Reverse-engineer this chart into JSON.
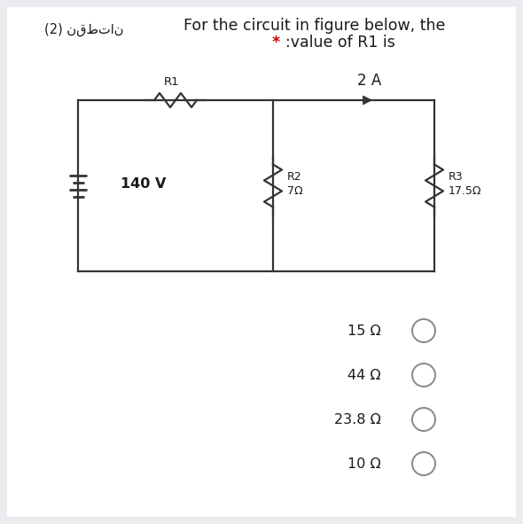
{
  "bg_color": "#ebebf0",
  "inner_bg_color": "#ffffff",
  "title_line1": "For the circuit in figure below, the",
  "title_line2_text": ":value of R1 is",
  "arabic_label": "(2) نقطتان",
  "current_label": "2 A",
  "voltage_label": "140 V",
  "R1_label": "R1",
  "R2_top": "R2",
  "R2_bot": "7Ω",
  "R3_top": "R3",
  "R3_bot": "17.5Ω",
  "options": [
    "15 Ω",
    "44 Ω",
    "23.8 Ω",
    "10 Ω"
  ],
  "star_color": "#cc0000",
  "text_color": "#1a1a1a",
  "circuit_color": "#333333",
  "option_circle_color": "#888888",
  "bg_border_color": "#d8d8e0"
}
